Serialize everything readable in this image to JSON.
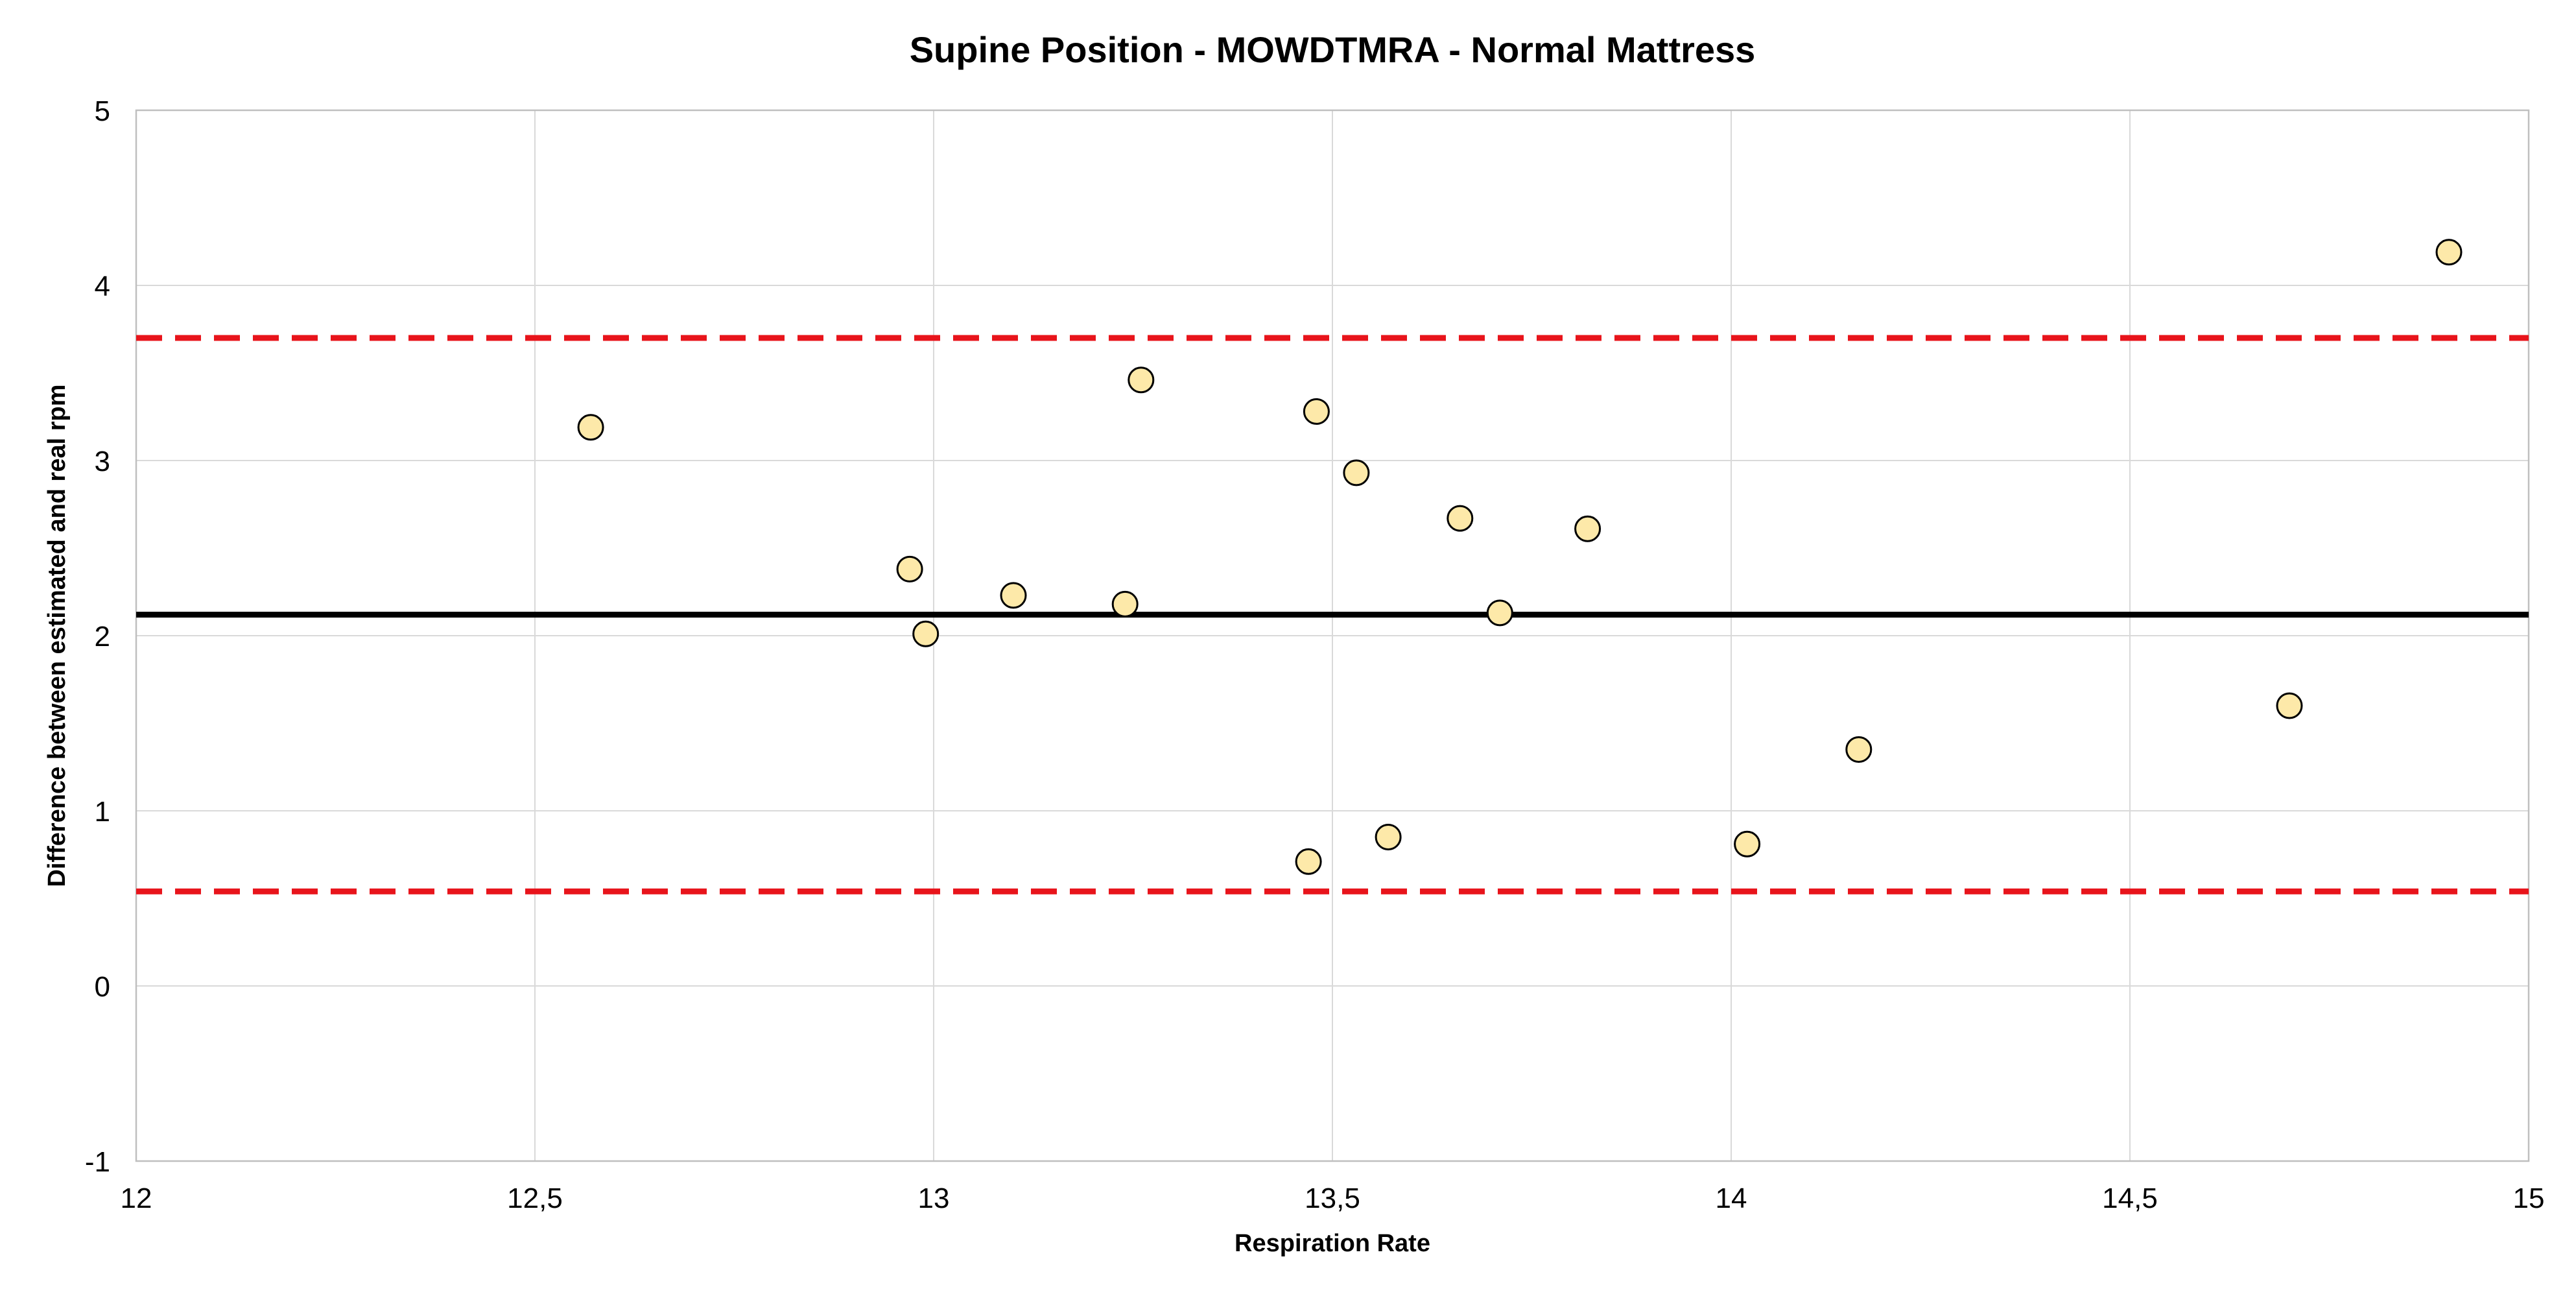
{
  "chart_data": {
    "type": "scatter",
    "title": "Supine Position - MOWDTMRA - Normal Mattress",
    "xlabel": "Respiration Rate",
    "ylabel": "Difference between estimated and real rpm",
    "xlim": [
      12,
      15
    ],
    "ylim": [
      -1,
      5
    ],
    "x_ticks": [
      "12",
      "12,5",
      "13",
      "13,5",
      "14",
      "14,5",
      "15"
    ],
    "y_ticks": [
      "-1",
      "0",
      "1",
      "2",
      "3",
      "4",
      "5"
    ],
    "grid": true,
    "points": [
      {
        "x": 12.57,
        "y": 3.19
      },
      {
        "x": 12.97,
        "y": 2.38
      },
      {
        "x": 12.99,
        "y": 2.01
      },
      {
        "x": 13.1,
        "y": 2.23
      },
      {
        "x": 13.24,
        "y": 2.18
      },
      {
        "x": 13.26,
        "y": 3.46
      },
      {
        "x": 13.47,
        "y": 0.71
      },
      {
        "x": 13.48,
        "y": 3.28
      },
      {
        "x": 13.53,
        "y": 2.93
      },
      {
        "x": 13.57,
        "y": 0.85
      },
      {
        "x": 13.66,
        "y": 2.67
      },
      {
        "x": 13.71,
        "y": 2.13
      },
      {
        "x": 13.82,
        "y": 2.61
      },
      {
        "x": 14.02,
        "y": 0.81
      },
      {
        "x": 14.16,
        "y": 1.35
      },
      {
        "x": 14.7,
        "y": 1.6
      },
      {
        "x": 14.9,
        "y": 4.19
      }
    ],
    "reference_lines": [
      {
        "kind": "mean",
        "y": 2.12,
        "color": "#000000",
        "style": "solid"
      },
      {
        "kind": "upper-limit",
        "y": 3.7,
        "color": "#e8141b",
        "style": "dashed"
      },
      {
        "kind": "lower-limit",
        "y": 0.54,
        "color": "#e8141b",
        "style": "dashed"
      }
    ],
    "marker_fill": "#fde9a9",
    "marker_stroke": "#000000"
  }
}
